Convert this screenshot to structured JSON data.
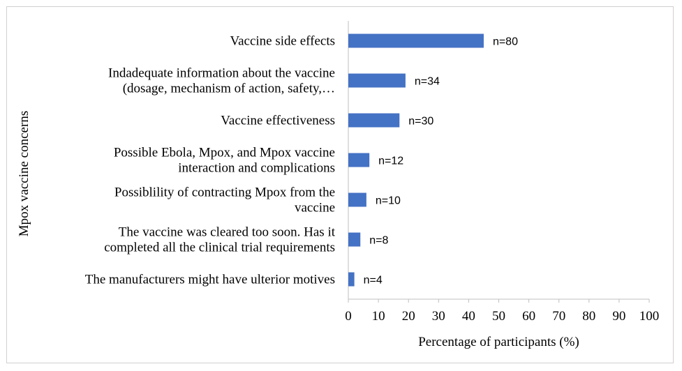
{
  "chart_data": {
    "type": "bar",
    "orientation": "horizontal",
    "title": "",
    "xlabel": "Percentage of participants (%)",
    "ylabel": "Mpox vaccine concerns",
    "xlim": [
      0,
      100
    ],
    "xticks": [
      0,
      10,
      20,
      30,
      40,
      50,
      60,
      70,
      80,
      90,
      100
    ],
    "grid": false,
    "bar_color": "#4472C4",
    "categories": [
      [
        "Vaccine side effects"
      ],
      [
        "Indadequate information about the vaccine",
        "(dosage, mechanism of action, safety,…"
      ],
      [
        "Vaccine effectiveness"
      ],
      [
        "Possible Ebola, Mpox, and Mpox vaccine",
        "interaction and complications"
      ],
      [
        "Possiblility of contracting Mpox from the",
        "vaccine"
      ],
      [
        "The vaccine was cleared too soon. Has it",
        "completed all the clinical trial requirements"
      ],
      [
        "The manufacturers might have ulterior motives"
      ]
    ],
    "values": [
      45,
      19,
      17,
      7,
      6,
      4,
      2
    ],
    "data_labels": [
      "n=80",
      "n=34",
      "n=30",
      "n=12",
      "n=10",
      "n=8",
      "n=4"
    ]
  }
}
